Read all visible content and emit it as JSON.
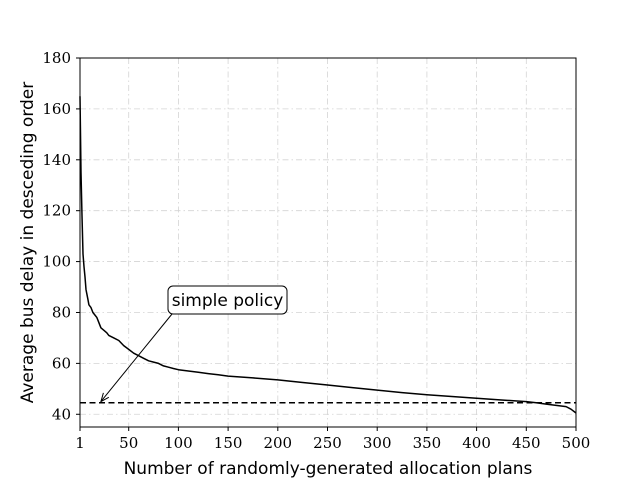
{
  "chart_data": {
    "type": "line",
    "title": "",
    "xlabel": "Number of randomly-generated allocation plans",
    "ylabel": "Average bus delay in desceding order",
    "xlim": [
      1,
      500
    ],
    "ylim": [
      35,
      180
    ],
    "xticks": [
      1,
      50,
      100,
      150,
      200,
      250,
      300,
      350,
      400,
      450,
      500
    ],
    "yticks": [
      40,
      60,
      80,
      100,
      120,
      140,
      160,
      180
    ],
    "grid": true,
    "series": [
      {
        "name": "",
        "style": "solid",
        "color": "#000000",
        "x": [
          1,
          2,
          3,
          4,
          5,
          6,
          7,
          8,
          9,
          10,
          12,
          14,
          16,
          18,
          20,
          22,
          25,
          28,
          30,
          35,
          40,
          45,
          50,
          55,
          60,
          65,
          70,
          75,
          80,
          85,
          90,
          95,
          100,
          110,
          120,
          130,
          140,
          150,
          175,
          200,
          225,
          250,
          275,
          300,
          325,
          350,
          375,
          400,
          425,
          450,
          460,
          470,
          480,
          490,
          495,
          500
        ],
        "values": [
          165,
          135,
          118,
          103,
          98,
          94,
          89,
          87,
          85,
          83,
          82,
          80,
          79,
          78,
          76,
          74,
          73,
          72,
          71,
          70,
          69,
          67,
          65.5,
          64,
          63,
          62,
          61,
          60.5,
          60,
          59,
          58.5,
          58,
          57.5,
          57,
          56.5,
          56,
          55.5,
          55,
          54.3,
          53.5,
          52.5,
          51.5,
          50.5,
          49.5,
          48.5,
          47.7,
          47,
          46.3,
          45.6,
          45,
          44.5,
          44,
          43.5,
          43,
          42,
          40.5
        ]
      },
      {
        "name": "",
        "style": "dashed",
        "color": "#000000",
        "x": [
          1,
          500
        ],
        "values": [
          44.5,
          44.5
        ]
      }
    ],
    "annotations": [
      {
        "text": "simple policy",
        "target": [
          22,
          45
        ]
      }
    ]
  }
}
